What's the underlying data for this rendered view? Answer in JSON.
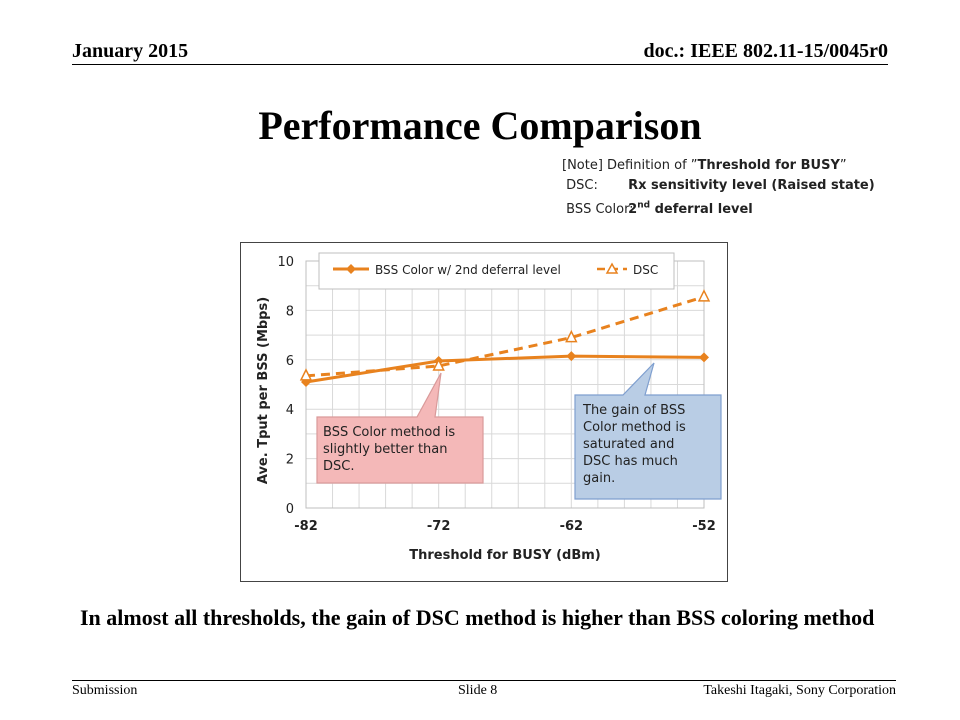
{
  "header": {
    "date": "January 2015",
    "doc": "doc.: IEEE 802.11-15/0045r0"
  },
  "title": "Performance Comparison",
  "note": {
    "heading_prefix": "[Note] Definition of ”",
    "heading_term": "Threshold for BUSY",
    "heading_suffix": "”",
    "rows": [
      {
        "label": "DSC:",
        "value": "Rx sensitivity level (Raised state)"
      },
      {
        "label": "BSS Color:",
        "value_prefix": "2",
        "value_sup": "nd",
        "value_suffix": " deferral level"
      }
    ]
  },
  "chart_data": {
    "type": "line",
    "xlabel": "Threshold for BUSY (dBm)",
    "ylabel": "Ave. Tput per BSS (Mbps)",
    "x": [
      -82,
      -72,
      -62,
      -52
    ],
    "xticks": [
      "-82",
      "-72",
      "-62",
      "-52"
    ],
    "ylim": [
      0,
      10
    ],
    "yticks": [
      "0",
      "2",
      "4",
      "6",
      "8",
      "10"
    ],
    "grid": true,
    "legend_position": "top",
    "series": [
      {
        "name": "BSS Color w/ 2nd deferral level",
        "values": [
          5.1,
          5.95,
          6.15,
          6.1
        ],
        "color": "#E8821E",
        "style": "solid",
        "marker": "diamond"
      },
      {
        "name": "DSC",
        "values": [
          5.35,
          5.75,
          6.9,
          8.55
        ],
        "color": "#E8821E",
        "style": "dashed",
        "marker": "triangle"
      }
    ],
    "annotations": [
      {
        "text": "BSS Color method is slightly better than DSC.",
        "color": "#F4B8B8"
      },
      {
        "text": "The gain of BSS Color method is saturated and DSC has much gain.",
        "color": "#B9CDE5"
      }
    ]
  },
  "summary": "In almost all thresholds, the gain of DSC method is higher than BSS coloring method",
  "footer": {
    "left": "Submission",
    "middle": "Slide 8",
    "right": "Takeshi Itagaki, Sony Corporation"
  }
}
